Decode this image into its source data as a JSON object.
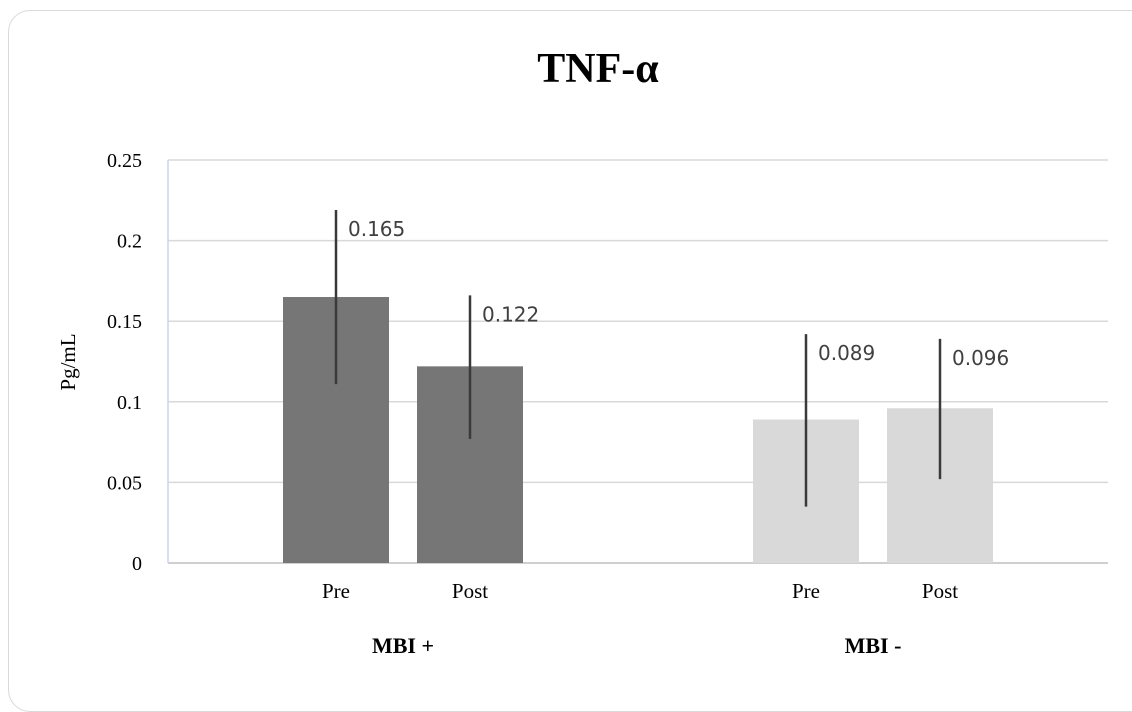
{
  "chart_data": {
    "type": "bar",
    "title": "TNF-α",
    "ylabel": "Pg/mL",
    "xlabel": "",
    "ylim": [
      0,
      0.25
    ],
    "yticks": [
      "0",
      "0.05",
      "0.1",
      "0.15",
      "0.2",
      "0.25"
    ],
    "grid": true,
    "legend": "none",
    "groups": [
      {
        "name": "MBI +",
        "color": "#767676",
        "bars": [
          {
            "category": "Pre",
            "value": 0.165,
            "label": "0.165",
            "err_low": 0.111,
            "err_high": 0.219
          },
          {
            "category": "Post",
            "value": 0.122,
            "label": "0.122",
            "err_low": 0.077,
            "err_high": 0.166
          }
        ]
      },
      {
        "name": "MBI -",
        "color": "#d9d9d9",
        "bars": [
          {
            "category": "Pre",
            "value": 0.089,
            "label": "0.089",
            "err_low": 0.035,
            "err_high": 0.142
          },
          {
            "category": "Post",
            "value": 0.096,
            "label": "0.096",
            "err_low": 0.052,
            "err_high": 0.139
          }
        ]
      }
    ]
  }
}
